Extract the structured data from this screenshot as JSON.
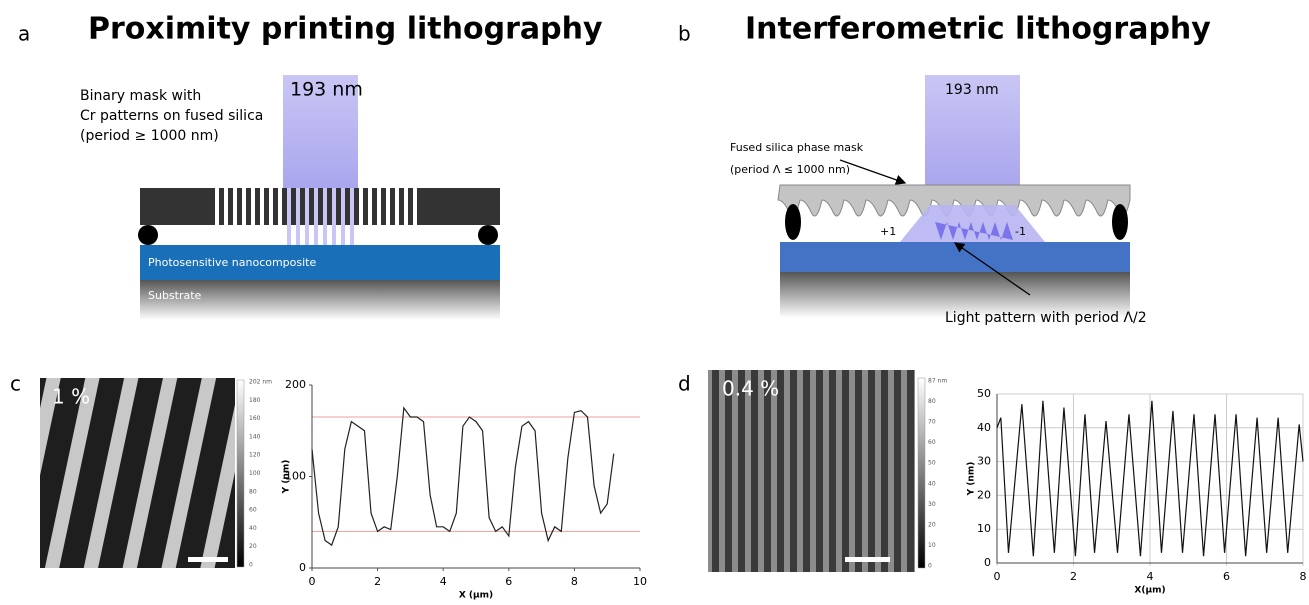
{
  "panel_a": {
    "letter": "a",
    "title": "Proximity printing lithography",
    "mask_label": [
      "Binary mask with",
      "Cr patterns on fused silica",
      "(period ≥ 1000 nm)"
    ],
    "wavelength": "193 nm",
    "layer": "Photosensitive nanocomposite",
    "substrate": "Substrate"
  },
  "panel_b": {
    "letter": "b",
    "title": "Interferometric lithography",
    "wavelength": "193 nm",
    "mask_label": [
      "Fused silica phase mask",
      "(period Λ ≤ 1000 nm)"
    ],
    "order_plus": "+1",
    "order_minus": "-1",
    "pattern_label": "Light pattern with period Λ/2"
  },
  "panel_c": {
    "letter": "c",
    "concentration": "1 %",
    "colorbar": [
      "202 nm",
      "180",
      "160",
      "140",
      "120",
      "100",
      "80",
      "60",
      "40",
      "20",
      "0"
    ],
    "plot": {
      "type": "line",
      "x_label": "X (µm)",
      "y_label": "Y (nm)",
      "xlim": [
        0,
        10
      ],
      "ylim": [
        0,
        200
      ],
      "xticks": [
        0,
        2,
        4,
        6,
        8,
        10
      ],
      "yticks": [
        0,
        100,
        200
      ],
      "reference_lines": [
        165,
        40
      ],
      "color": "#222222",
      "x": [
        0,
        0.2,
        0.4,
        0.6,
        0.8,
        1.0,
        1.2,
        1.4,
        1.6,
        1.8,
        2.0,
        2.2,
        2.4,
        2.6,
        2.8,
        3.0,
        3.2,
        3.4,
        3.6,
        3.8,
        4.0,
        4.2,
        4.4,
        4.6,
        4.8,
        5.0,
        5.2,
        5.4,
        5.6,
        5.8,
        6.0,
        6.2,
        6.4,
        6.6,
        6.8,
        7.0,
        7.2,
        7.4,
        7.6,
        7.8,
        8.0,
        8.2,
        8.4,
        8.6,
        8.8,
        9.0,
        9.2
      ],
      "values": [
        130,
        60,
        30,
        25,
        45,
        130,
        160,
        155,
        150,
        60,
        40,
        45,
        42,
        100,
        175,
        165,
        165,
        160,
        80,
        45,
        45,
        40,
        60,
        155,
        165,
        160,
        150,
        55,
        40,
        45,
        35,
        110,
        155,
        160,
        150,
        60,
        30,
        45,
        40,
        120,
        170,
        172,
        165,
        90,
        60,
        70,
        125
      ]
    }
  },
  "panel_d": {
    "letter": "d",
    "concentration": "0.4 %",
    "colorbar": [
      "87 nm",
      "80",
      "70",
      "60",
      "50",
      "40",
      "30",
      "20",
      "10",
      "0"
    ],
    "plot": {
      "type": "line",
      "x_label": "X(µm)",
      "y_label": "Y (nm)",
      "xlim": [
        0,
        8
      ],
      "ylim": [
        0,
        50
      ],
      "xticks": [
        0,
        2,
        4,
        6,
        8
      ],
      "yticks": [
        0,
        10,
        20,
        30,
        40,
        50
      ],
      "grid": true,
      "color": "#111111",
      "x": [
        0,
        0.1,
        0.3,
        0.65,
        0.95,
        1.2,
        1.5,
        1.75,
        2.05,
        2.3,
        2.55,
        2.85,
        3.15,
        3.45,
        3.75,
        4.05,
        4.3,
        4.6,
        4.85,
        5.15,
        5.4,
        5.7,
        5.95,
        6.25,
        6.5,
        6.8,
        7.05,
        7.35,
        7.6,
        7.9,
        8.0
      ],
      "values": [
        40,
        43,
        3,
        47,
        2,
        48,
        3,
        46,
        2,
        44,
        3,
        42,
        3,
        44,
        2,
        48,
        3,
        45,
        3,
        44,
        2,
        44,
        3,
        44,
        2,
        43,
        3,
        43,
        3,
        41,
        30
      ]
    }
  }
}
